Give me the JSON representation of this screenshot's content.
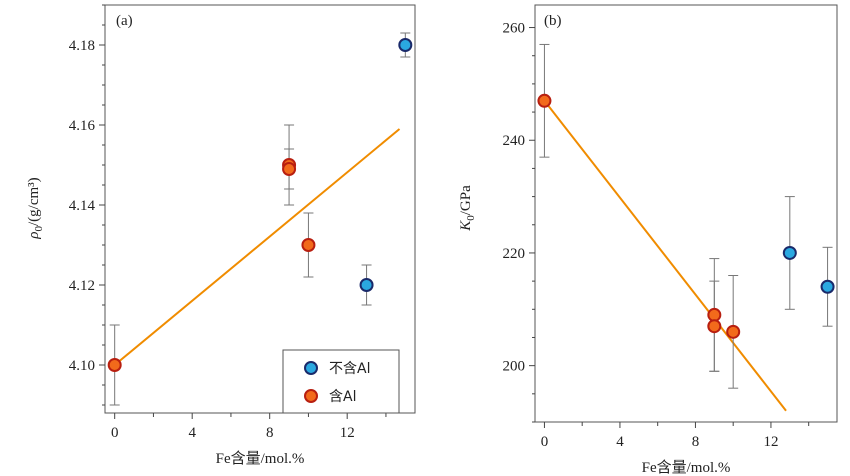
{
  "chart_data": [
    {
      "panel": "(a)",
      "type": "scatter",
      "xlabel": "Fe含量/mol.%",
      "ylabel": "ρ0/(g/cm³)",
      "ylabel_parts": {
        "symbol": "ρ",
        "sub": "0",
        "unit": "/(g/cm³)"
      },
      "xlim": [
        -0.5,
        15.5
      ],
      "ylim": [
        4.088,
        4.19
      ],
      "xticks": [
        0,
        4,
        8,
        12
      ],
      "xticks_minor": [
        2,
        6,
        10,
        14
      ],
      "yticks": [
        4.1,
        4.12,
        4.14,
        4.16,
        4.18
      ],
      "ytick_labels": [
        "4.10",
        "4.12",
        "4.14",
        "4.16",
        "4.18"
      ],
      "grid": false,
      "legend_position": "bottom-right",
      "series": [
        {
          "name": "不含Al",
          "color": "#2aa8e0",
          "edge": "#1a2a6a",
          "points": [
            {
              "x": 13,
              "y": 4.12,
              "err": 0.005
            },
            {
              "x": 15,
              "y": 4.18,
              "err": 0.003
            }
          ]
        },
        {
          "name": "含Al",
          "color": "#f26a1b",
          "edge": "#b81f10",
          "points": [
            {
              "x": 0,
              "y": 4.1,
              "err": 0.01
            },
            {
              "x": 9,
              "y": 4.15,
              "err": 0.01
            },
            {
              "x": 9,
              "y": 4.149,
              "err": 0.005
            },
            {
              "x": 10,
              "y": 4.13,
              "err": 0.008
            }
          ]
        }
      ],
      "fit_line": {
        "color": "#f08c00",
        "x": [
          0,
          14.7
        ],
        "y": [
          4.1,
          4.159
        ]
      }
    },
    {
      "panel": "(b)",
      "type": "scatter",
      "xlabel": "Fe含量/mol.%",
      "ylabel": "K0/GPa",
      "ylabel_parts": {
        "symbol": "K",
        "sub": "0",
        "unit": "/GPa"
      },
      "xlim": [
        -0.5,
        15.5
      ],
      "ylim": [
        190,
        264
      ],
      "xticks": [
        0,
        4,
        8,
        12
      ],
      "xticks_minor": [
        2,
        6,
        10,
        14
      ],
      "yticks": [
        200,
        220,
        240,
        260
      ],
      "ytick_labels": [
        "200",
        "220",
        "240",
        "260"
      ],
      "grid": false,
      "series": [
        {
          "name": "不含Al",
          "color": "#2aa8e0",
          "edge": "#1a2a6a",
          "points": [
            {
              "x": 13,
              "y": 220,
              "err": 10
            },
            {
              "x": 15,
              "y": 214,
              "err": 7
            }
          ]
        },
        {
          "name": "含Al",
          "color": "#f26a1b",
          "edge": "#b81f10",
          "points": [
            {
              "x": 0,
              "y": 247,
              "err": 10
            },
            {
              "x": 9,
              "y": 209,
              "err": 10
            },
            {
              "x": 9,
              "y": 207,
              "err": 8
            },
            {
              "x": 10,
              "y": 206,
              "err": 10
            }
          ]
        }
      ],
      "fit_line": {
        "color": "#f08c00",
        "x": [
          0,
          12.8
        ],
        "y": [
          247,
          192
        ]
      }
    }
  ]
}
